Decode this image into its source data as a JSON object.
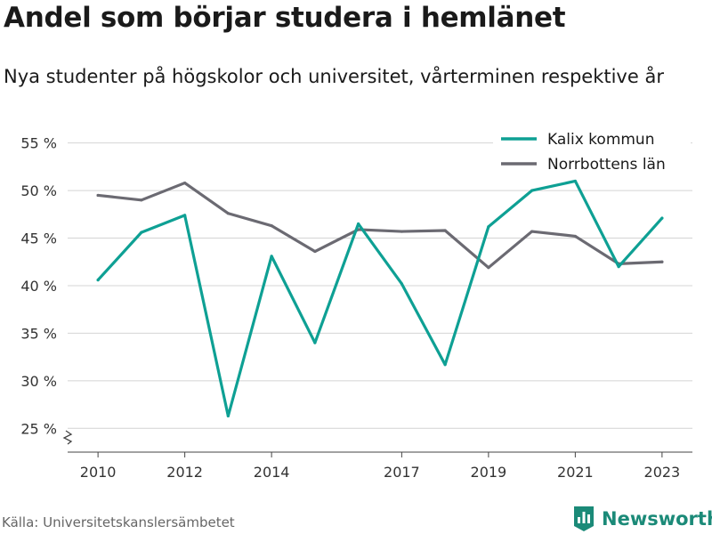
{
  "title": "Andel som börjar studera i hemlänet",
  "subtitle": "Nya studenter på högskolor och universitet, vårterminen respektive år",
  "source": "Källa: Universitetskanslersämbetet",
  "brand": {
    "name": "Newsworthy",
    "icon": "bar-chart-logo-icon",
    "color": "#1b8a78"
  },
  "chart_data": {
    "type": "line",
    "x": [
      2010,
      2011,
      2012,
      2013,
      2014,
      2015,
      2016,
      2017,
      2018,
      2019,
      2020,
      2021,
      2022,
      2023
    ],
    "xticks": [
      2010,
      2012,
      2014,
      2017,
      2019,
      2021,
      2023
    ],
    "yticks": [
      25,
      30,
      35,
      40,
      45,
      50,
      55
    ],
    "yticklabels": [
      "25 %",
      "30 %",
      "35 %",
      "40 %",
      "45 %",
      "50 %",
      "55 %"
    ],
    "ylim": [
      22.5,
      56
    ],
    "y_axis_break": true,
    "grid": true,
    "legend_position": "top-right",
    "series": [
      {
        "name": "Kalix kommun",
        "color": "#0ea094",
        "values": [
          40.6,
          45.6,
          47.4,
          26.3,
          43.1,
          34.0,
          46.5,
          40.2,
          31.7,
          46.2,
          50.0,
          51.0,
          42.0,
          47.1
        ]
      },
      {
        "name": "Norrbottens län",
        "color": "#6b6a72",
        "values": [
          49.5,
          49.0,
          50.8,
          47.6,
          46.3,
          43.6,
          45.9,
          45.7,
          45.8,
          41.9,
          45.7,
          45.2,
          42.3,
          42.5
        ]
      }
    ]
  }
}
